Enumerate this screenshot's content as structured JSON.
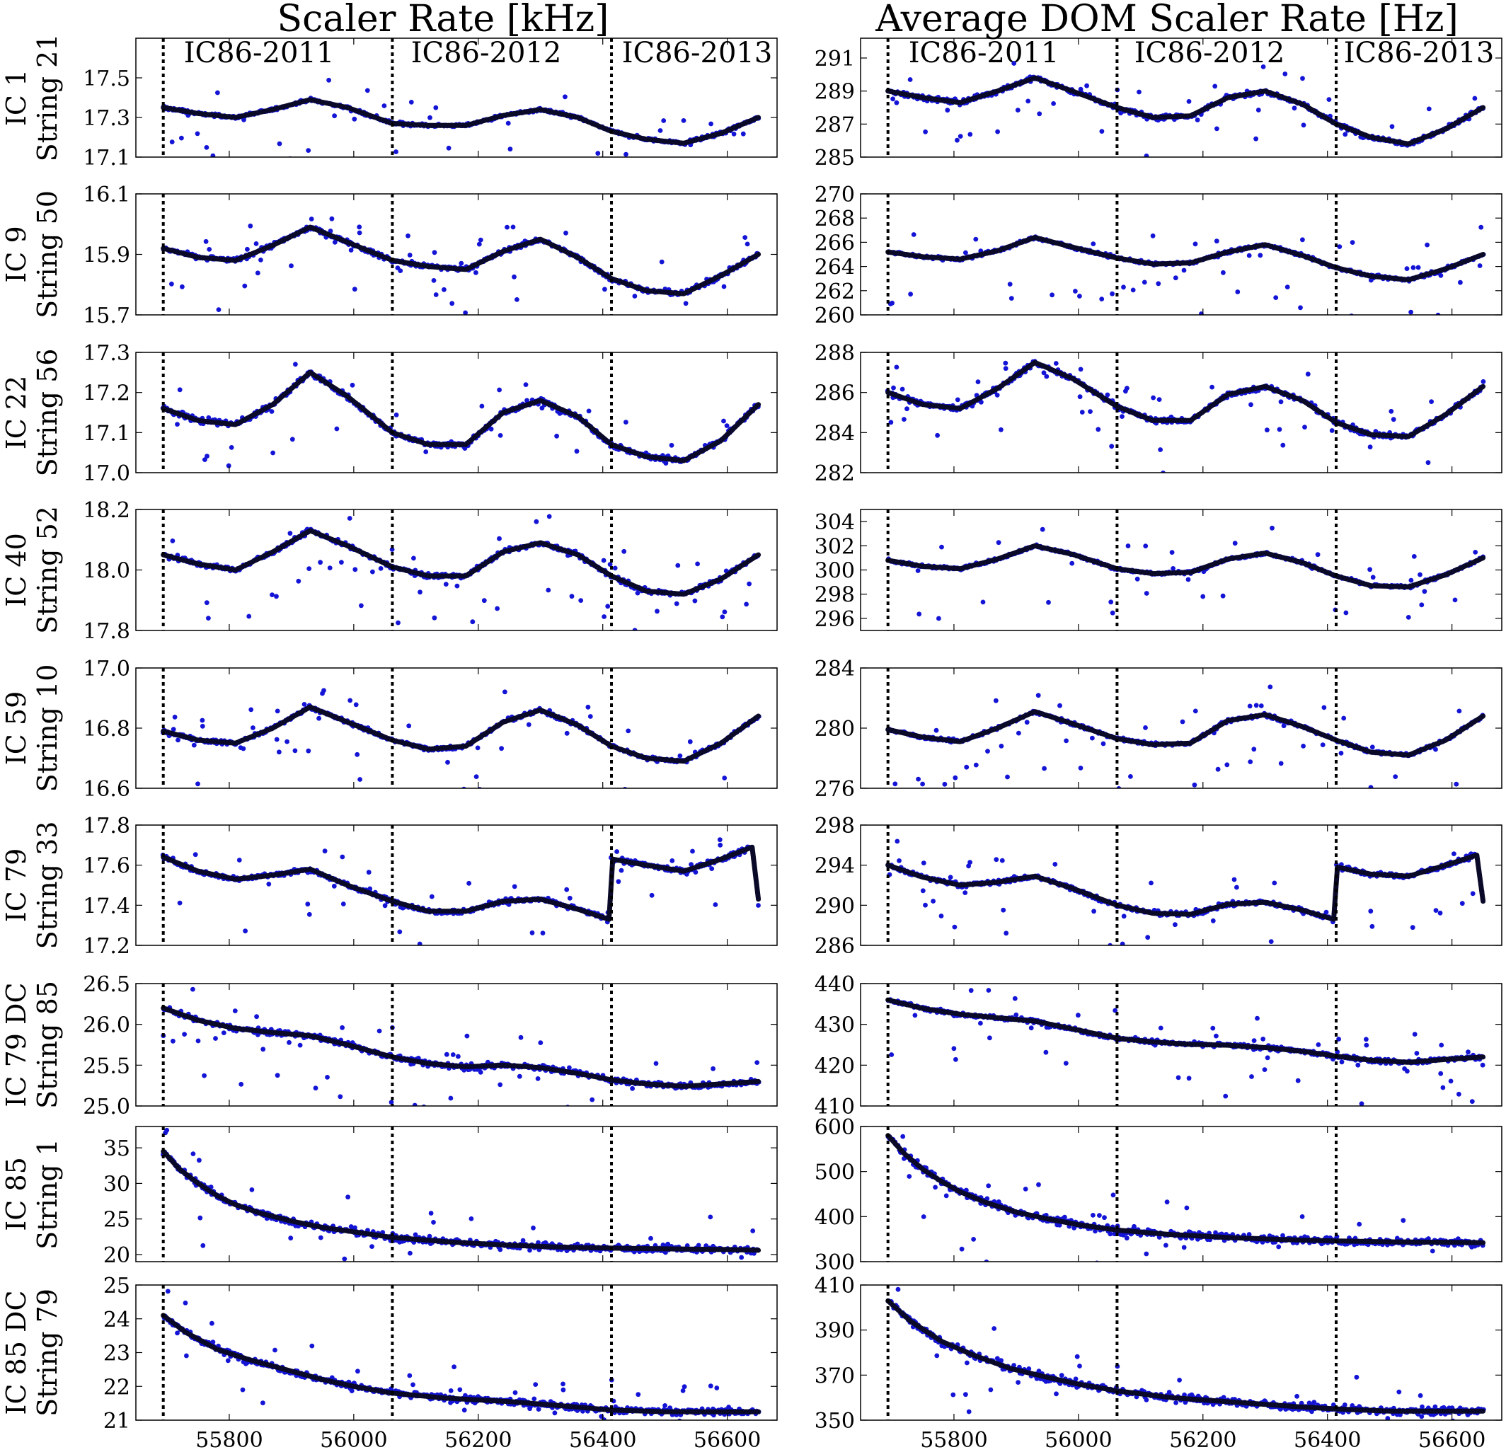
{
  "figure": {
    "column_titles": [
      "Scaler Rate [kHz]",
      "Average DOM Scaler Rate [Hz]"
    ],
    "season_labels": [
      "IC86-2011",
      "IC86-2012",
      "IC86-2013"
    ],
    "season_boundaries": [
      55694,
      56062,
      56414
    ],
    "x_range": [
      55650,
      56680
    ],
    "x_ticks": [
      55800,
      56000,
      56200,
      56400,
      56600
    ],
    "x_tick_labels": [
      "55800",
      "56000",
      "56200",
      "56400",
      "56600"
    ],
    "colors": {
      "points": "#1414d6",
      "trend": "#0a0a28",
      "boundary": "#000000",
      "frame": "#000000"
    }
  },
  "chart_data": [
    {
      "type": "scatter",
      "row": 0,
      "col": 0,
      "row_label": [
        "IC 1",
        "String 21"
      ],
      "ylim": [
        17.1,
        17.7
      ],
      "yticks": [
        17.1,
        17.3,
        17.5
      ],
      "ytick_labels": [
        "17.1",
        "17.3",
        "17.5"
      ],
      "trend": {
        "x": [
          55694,
          55750,
          55810,
          55870,
          55930,
          55990,
          56062,
          56120,
          56180,
          56240,
          56300,
          56360,
          56414,
          56470,
          56530,
          56590,
          56650
        ],
        "y": [
          17.35,
          17.32,
          17.3,
          17.34,
          17.39,
          17.35,
          17.27,
          17.26,
          17.26,
          17.31,
          17.34,
          17.3,
          17.23,
          17.19,
          17.17,
          17.22,
          17.3
        ]
      }
    },
    {
      "type": "scatter",
      "row": 0,
      "col": 1,
      "row_label": [
        "IC 1",
        "String 21"
      ],
      "ylim": [
        285,
        292.2
      ],
      "yticks": [
        285,
        287,
        289,
        291
      ],
      "ytick_labels": [
        "285",
        "287",
        "289",
        "291"
      ],
      "trend": {
        "x": [
          55694,
          55750,
          55810,
          55870,
          55930,
          55990,
          56062,
          56120,
          56180,
          56240,
          56300,
          56360,
          56414,
          56470,
          56530,
          56590,
          56650
        ],
        "y": [
          289.0,
          288.6,
          288.3,
          289.0,
          289.8,
          289.0,
          288.0,
          287.4,
          287.5,
          288.6,
          289.0,
          288.2,
          287.0,
          286.2,
          285.8,
          286.7,
          288.0
        ]
      }
    },
    {
      "type": "scatter",
      "row": 1,
      "col": 0,
      "row_label": [
        "IC 9",
        "String 50"
      ],
      "ylim": [
        15.7,
        16.1
      ],
      "yticks": [
        15.7,
        15.9,
        16.1
      ],
      "ytick_labels": [
        "15.7",
        "15.9",
        "16.1"
      ],
      "trend": {
        "x": [
          55694,
          55750,
          55810,
          55870,
          55930,
          55990,
          56062,
          56120,
          56180,
          56240,
          56300,
          56360,
          56414,
          56470,
          56530,
          56590,
          56650
        ],
        "y": [
          15.92,
          15.89,
          15.88,
          15.93,
          15.99,
          15.94,
          15.88,
          15.86,
          15.85,
          15.91,
          15.95,
          15.89,
          15.82,
          15.78,
          15.77,
          15.83,
          15.9
        ]
      }
    },
    {
      "type": "scatter",
      "row": 1,
      "col": 1,
      "row_label": [
        "IC 9",
        "String 50"
      ],
      "ylim": [
        260,
        270
      ],
      "yticks": [
        260,
        262,
        264,
        266,
        268,
        270
      ],
      "ytick_labels": [
        "260",
        "262",
        "264",
        "266",
        "268",
        "270"
      ],
      "trend": {
        "x": [
          55694,
          55750,
          55810,
          55870,
          55930,
          55990,
          56062,
          56120,
          56180,
          56240,
          56300,
          56360,
          56414,
          56470,
          56530,
          56590,
          56650
        ],
        "y": [
          265.2,
          264.8,
          264.6,
          265.3,
          266.4,
          265.6,
          264.7,
          264.2,
          264.3,
          265.2,
          265.8,
          264.9,
          263.9,
          263.2,
          262.9,
          263.8,
          265.0
        ]
      }
    },
    {
      "type": "scatter",
      "row": 2,
      "col": 0,
      "row_label": [
        "IC 22",
        "String 56"
      ],
      "ylim": [
        17.0,
        17.3
      ],
      "yticks": [
        17.0,
        17.1,
        17.2,
        17.3
      ],
      "ytick_labels": [
        "17.0",
        "17.1",
        "17.2",
        "17.3"
      ],
      "trend": {
        "x": [
          55694,
          55750,
          55810,
          55870,
          55930,
          55990,
          56062,
          56120,
          56180,
          56240,
          56300,
          56360,
          56414,
          56470,
          56530,
          56590,
          56650
        ],
        "y": [
          17.16,
          17.13,
          17.12,
          17.17,
          17.25,
          17.19,
          17.1,
          17.07,
          17.07,
          17.15,
          17.18,
          17.14,
          17.07,
          17.04,
          17.03,
          17.08,
          17.17
        ]
      }
    },
    {
      "type": "scatter",
      "row": 2,
      "col": 1,
      "row_label": [
        "IC 22",
        "String 56"
      ],
      "ylim": [
        282,
        288
      ],
      "yticks": [
        282,
        284,
        286,
        288
      ],
      "ytick_labels": [
        "282",
        "284",
        "286",
        "288"
      ],
      "trend": {
        "x": [
          55694,
          55750,
          55810,
          55870,
          55930,
          55990,
          56062,
          56120,
          56180,
          56240,
          56300,
          56360,
          56414,
          56470,
          56530,
          56590,
          56650
        ],
        "y": [
          286.0,
          285.4,
          285.2,
          286.2,
          287.5,
          286.7,
          285.3,
          284.6,
          284.6,
          285.9,
          286.3,
          285.6,
          284.5,
          283.9,
          283.8,
          284.9,
          286.3
        ]
      }
    },
    {
      "type": "scatter",
      "row": 3,
      "col": 0,
      "row_label": [
        "IC 40",
        "String 52"
      ],
      "ylim": [
        17.8,
        18.2
      ],
      "yticks": [
        17.8,
        18.0,
        18.2
      ],
      "ytick_labels": [
        "17.8",
        "18.0",
        "18.2"
      ],
      "trend": {
        "x": [
          55694,
          55750,
          55810,
          55870,
          55930,
          55990,
          56062,
          56120,
          56180,
          56240,
          56300,
          56360,
          56414,
          56470,
          56530,
          56590,
          56650
        ],
        "y": [
          18.05,
          18.02,
          18.0,
          18.06,
          18.13,
          18.08,
          18.01,
          17.98,
          17.98,
          18.06,
          18.09,
          18.05,
          17.98,
          17.93,
          17.92,
          17.97,
          18.05
        ]
      }
    },
    {
      "type": "scatter",
      "row": 3,
      "col": 1,
      "row_label": [
        "IC 40",
        "String 52"
      ],
      "ylim": [
        295,
        305
      ],
      "yticks": [
        296,
        298,
        300,
        302,
        304
      ],
      "ytick_labels": [
        "296",
        "298",
        "300",
        "302",
        "304"
      ],
      "trend": {
        "x": [
          55694,
          55750,
          55810,
          55870,
          55930,
          55990,
          56062,
          56120,
          56180,
          56240,
          56300,
          56360,
          56414,
          56470,
          56530,
          56590,
          56650
        ],
        "y": [
          300.8,
          300.3,
          300.1,
          300.9,
          302.0,
          301.3,
          300.1,
          299.7,
          299.8,
          300.9,
          301.4,
          300.6,
          299.5,
          298.7,
          298.6,
          299.6,
          301.0
        ]
      }
    },
    {
      "type": "scatter",
      "row": 4,
      "col": 0,
      "row_label": [
        "IC 59",
        "String 10"
      ],
      "ylim": [
        16.6,
        17.0
      ],
      "yticks": [
        16.6,
        16.8,
        17.0
      ],
      "ytick_labels": [
        "16.6",
        "16.8",
        "17.0"
      ],
      "trend": {
        "x": [
          55694,
          55750,
          55810,
          55870,
          55930,
          55990,
          56062,
          56120,
          56180,
          56240,
          56300,
          56360,
          56414,
          56470,
          56530,
          56590,
          56650
        ],
        "y": [
          16.79,
          16.76,
          16.75,
          16.8,
          16.87,
          16.82,
          16.76,
          16.73,
          16.74,
          16.82,
          16.86,
          16.81,
          16.74,
          16.7,
          16.69,
          16.75,
          16.84
        ]
      }
    },
    {
      "type": "scatter",
      "row": 4,
      "col": 1,
      "row_label": [
        "IC 59",
        "String 10"
      ],
      "ylim": [
        276,
        284
      ],
      "yticks": [
        276,
        280,
        284
      ],
      "ytick_labels": [
        "276",
        "280",
        "284"
      ],
      "trend": {
        "x": [
          55694,
          55750,
          55810,
          55870,
          55930,
          55990,
          56062,
          56120,
          56180,
          56240,
          56300,
          56360,
          56414,
          56470,
          56530,
          56590,
          56650
        ],
        "y": [
          279.9,
          279.4,
          279.1,
          280.0,
          281.1,
          280.3,
          279.3,
          278.9,
          279.0,
          280.5,
          280.9,
          280.1,
          279.2,
          278.4,
          278.2,
          279.2,
          280.8
        ]
      }
    },
    {
      "type": "scatter",
      "row": 5,
      "col": 0,
      "row_label": [
        "IC 79",
        "String 33"
      ],
      "ylim": [
        17.2,
        17.8
      ],
      "yticks": [
        17.2,
        17.4,
        17.6,
        17.8
      ],
      "ytick_labels": [
        "17.2",
        "17.4",
        "17.6",
        "17.8"
      ],
      "trend": {
        "x": [
          55694,
          55750,
          55810,
          55870,
          55930,
          55990,
          56062,
          56120,
          56180,
          56240,
          56300,
          56360,
          56410,
          56416,
          56470,
          56530,
          56590,
          56640,
          56650
        ],
        "y": [
          17.64,
          17.57,
          17.53,
          17.55,
          17.58,
          17.5,
          17.42,
          17.37,
          17.37,
          17.42,
          17.43,
          17.38,
          17.33,
          17.63,
          17.6,
          17.57,
          17.63,
          17.69,
          17.43
        ]
      }
    },
    {
      "type": "scatter",
      "row": 5,
      "col": 1,
      "row_label": [
        "IC 79",
        "String 33"
      ],
      "ylim": [
        286,
        298
      ],
      "yticks": [
        286,
        290,
        294,
        298
      ],
      "ytick_labels": [
        "286",
        "290",
        "294",
        "298"
      ],
      "trend": {
        "x": [
          55694,
          55750,
          55810,
          55870,
          55930,
          55990,
          56062,
          56120,
          56180,
          56240,
          56300,
          56360,
          56410,
          56416,
          56470,
          56530,
          56590,
          56640,
          56650
        ],
        "y": [
          294.0,
          292.8,
          292.0,
          292.3,
          292.9,
          291.7,
          290.0,
          289.2,
          289.1,
          290.1,
          290.3,
          289.5,
          288.6,
          293.8,
          293.1,
          292.9,
          294.0,
          295.0,
          290.4
        ]
      }
    },
    {
      "type": "scatter",
      "row": 6,
      "col": 0,
      "row_label": [
        "IC 79 DC",
        "String 85"
      ],
      "ylim": [
        25.0,
        26.5
      ],
      "yticks": [
        25.0,
        25.5,
        26.0,
        26.5
      ],
      "ytick_labels": [
        "25.0",
        "25.5",
        "26.0",
        "26.5"
      ],
      "trend": {
        "x": [
          55694,
          55750,
          55810,
          55870,
          55930,
          55990,
          56062,
          56120,
          56180,
          56240,
          56300,
          56360,
          56414,
          56470,
          56530,
          56590,
          56650
        ],
        "y": [
          26.2,
          26.05,
          25.95,
          25.9,
          25.86,
          25.75,
          25.6,
          25.52,
          25.48,
          25.5,
          25.47,
          25.4,
          25.32,
          25.27,
          25.24,
          25.27,
          25.3
        ]
      }
    },
    {
      "type": "scatter",
      "row": 6,
      "col": 1,
      "row_label": [
        "IC 79 DC",
        "String 85"
      ],
      "ylim": [
        410,
        440
      ],
      "yticks": [
        410,
        420,
        430,
        440
      ],
      "ytick_labels": [
        "410",
        "420",
        "430",
        "440"
      ],
      "trend": {
        "x": [
          55694,
          55750,
          55810,
          55870,
          55930,
          55990,
          56062,
          56120,
          56180,
          56240,
          56300,
          56360,
          56414,
          56470,
          56530,
          56590,
          56650
        ],
        "y": [
          436.0,
          433.9,
          432.5,
          431.6,
          430.8,
          428.9,
          426.6,
          425.7,
          425.1,
          424.9,
          424.3,
          423.4,
          422.2,
          421.2,
          420.7,
          421.4,
          422.0
        ]
      }
    },
    {
      "type": "scatter",
      "row": 7,
      "col": 0,
      "row_label": [
        "IC 85",
        "String 1"
      ],
      "ylim": [
        19,
        38
      ],
      "yticks": [
        20,
        25,
        30,
        35
      ],
      "ytick_labels": [
        "20",
        "25",
        "30",
        "35"
      ],
      "trend": {
        "x": [
          55694,
          55720,
          55750,
          55780,
          55810,
          55850,
          55900,
          55950,
          56000,
          56062,
          56150,
          56250,
          56350,
          56414,
          56500,
          56600,
          56650
        ],
        "y": [
          34.5,
          32.0,
          30.0,
          28.3,
          27.0,
          25.8,
          24.7,
          23.8,
          23.2,
          22.4,
          21.8,
          21.3,
          21.0,
          20.9,
          20.8,
          20.7,
          20.6
        ]
      }
    },
    {
      "type": "scatter",
      "row": 7,
      "col": 1,
      "row_label": [
        "IC 85",
        "String 1"
      ],
      "ylim": [
        300,
        600
      ],
      "yticks": [
        300,
        400,
        500,
        600
      ],
      "ytick_labels": [
        "300",
        "400",
        "500",
        "600"
      ],
      "trend": {
        "x": [
          55694,
          55720,
          55750,
          55780,
          55810,
          55850,
          55900,
          55950,
          56000,
          56062,
          56150,
          56250,
          56350,
          56414,
          56500,
          56600,
          56650
        ],
        "y": [
          580,
          540,
          505,
          478,
          455,
          432,
          410,
          395,
          382,
          370,
          360,
          353,
          348,
          346,
          344,
          343,
          342
        ]
      }
    },
    {
      "type": "scatter",
      "row": 8,
      "col": 0,
      "row_label": [
        "IC 85 DC",
        "String 79"
      ],
      "ylim": [
        21,
        25
      ],
      "yticks": [
        21,
        22,
        23,
        24,
        25
      ],
      "ytick_labels": [
        "21",
        "22",
        "23",
        "24",
        "25"
      ],
      "trend": {
        "x": [
          55694,
          55730,
          55780,
          55830,
          55890,
          55950,
          56000,
          56062,
          56150,
          56250,
          56350,
          56414,
          56500,
          56600,
          56650
        ],
        "y": [
          24.1,
          23.6,
          23.1,
          22.8,
          22.5,
          22.2,
          22.0,
          21.8,
          21.65,
          21.55,
          21.4,
          21.3,
          21.25,
          21.25,
          21.25
        ]
      }
    },
    {
      "type": "scatter",
      "row": 8,
      "col": 1,
      "row_label": [
        "IC 85 DC",
        "String 79"
      ],
      "ylim": [
        350,
        410
      ],
      "yticks": [
        350,
        370,
        390,
        410
      ],
      "ytick_labels": [
        "350",
        "370",
        "390",
        "410"
      ],
      "trend": {
        "x": [
          55694,
          55730,
          55780,
          55830,
          55890,
          55950,
          56000,
          56062,
          56150,
          56250,
          56350,
          56414,
          56500,
          56600,
          56650
        ],
        "y": [
          403,
          394,
          385,
          379,
          373,
          369,
          366,
          363,
          360,
          358,
          356,
          355,
          354,
          354,
          354
        ]
      }
    }
  ]
}
